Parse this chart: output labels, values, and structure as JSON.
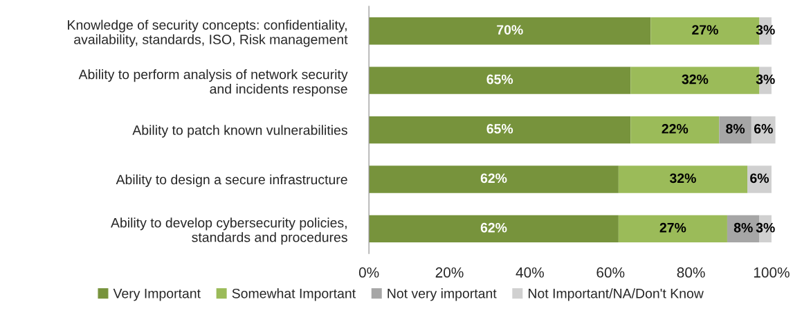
{
  "chart_data": {
    "type": "bar",
    "orientation": "horizontal",
    "stacked": true,
    "categories": [
      "Knowledge of security concepts: confidentiality,\navailability, standards, ISO, Risk management",
      "Ability to perform analysis of network security\nand incidents response",
      "Ability to patch known vulnerabilities",
      "Ability to design a secure infrastructure",
      "Ability to develop cybersecurity policies,\nstandards and procedures"
    ],
    "series": [
      {
        "name": "Very Important",
        "color": "#77933c",
        "values": [
          70,
          65,
          65,
          62,
          62
        ],
        "value_labels": [
          "70%",
          "65%",
          "65%",
          "62%",
          "62%"
        ]
      },
      {
        "name": "Somewhat Important",
        "color": "#9bbb59",
        "values": [
          27,
          32,
          22,
          32,
          27
        ],
        "value_labels": [
          "27%",
          "32%",
          "22%",
          "32%",
          "27%"
        ]
      },
      {
        "name": "Not very important",
        "color": "#a6a6a6",
        "values": [
          null,
          null,
          8,
          null,
          8
        ],
        "value_labels": [
          null,
          null,
          "8%",
          null,
          "8%"
        ]
      },
      {
        "name": "Not Important/NA/Don't Know",
        "color": "#d0d0d0",
        "values": [
          3,
          3,
          6,
          6,
          3
        ],
        "value_labels": [
          "3%",
          "3%",
          "6%",
          "6%",
          "3%"
        ]
      }
    ],
    "xlim": [
      0,
      101
    ],
    "xticks": [
      {
        "value": 0,
        "label": "0%"
      },
      {
        "value": 20,
        "label": "20%"
      },
      {
        "value": 40,
        "label": "40%"
      },
      {
        "value": 60,
        "label": "60%"
      },
      {
        "value": 80,
        "label": "80%"
      },
      {
        "value": 100,
        "label": "100%"
      }
    ],
    "grid": false,
    "legend": "bottom"
  }
}
